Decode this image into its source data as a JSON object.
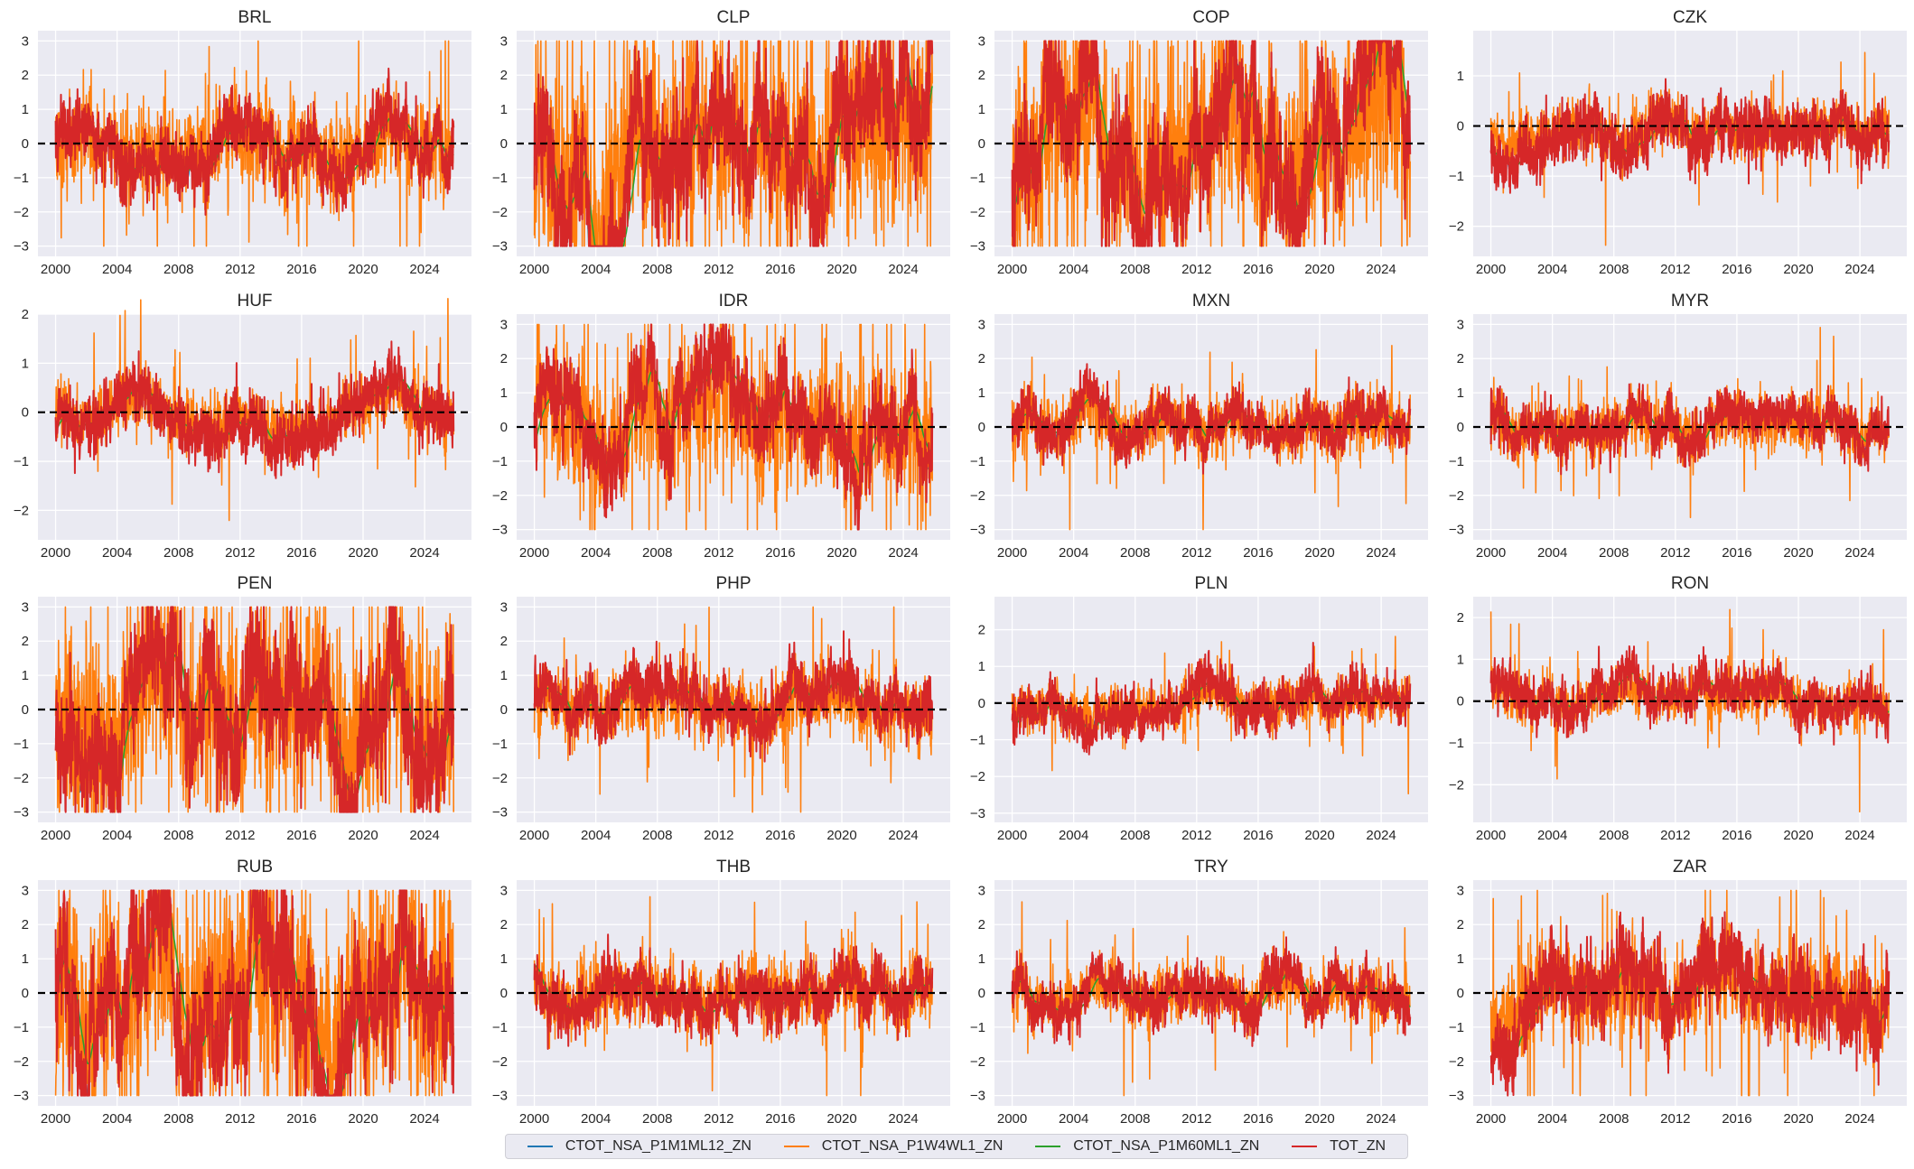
{
  "chart_data": {
    "type": "line",
    "xlim": [
      1998.85,
      2027.05
    ],
    "x_ticks": [
      2000,
      2004,
      2008,
      2012,
      2016,
      2020,
      2024
    ],
    "x_range_data": [
      2000.0,
      2025.9
    ],
    "grid": true,
    "legend_placement": "bottom-center",
    "reference_line": {
      "y": 0,
      "style": "dashed",
      "color": "#000000"
    },
    "series": [
      {
        "name": "CTOT_NSA_P1M1ML12_ZN",
        "color": "#1f77b4",
        "kind": "smooth"
      },
      {
        "name": "CTOT_NSA_P1W4WL1_ZN",
        "color": "#ff7f0e",
        "kind": "noisy"
      },
      {
        "name": "CTOT_NSA_P1M60ML1_ZN",
        "color": "#2ca02c",
        "kind": "smoothest"
      },
      {
        "name": "TOT_ZN",
        "color": "#d62728",
        "kind": "medium"
      }
    ],
    "clip": [
      -3,
      3
    ],
    "panels": [
      {
        "title": "BRL",
        "ylim": [
          -3.3,
          3.3
        ],
        "yticks": [
          -3,
          -2,
          -1,
          0,
          1,
          2,
          3
        ],
        "trend_amp": 1.1,
        "orange_vol": 1.2,
        "red_vol": 0.45
      },
      {
        "title": "CLP",
        "ylim": [
          -3.3,
          3.3
        ],
        "yticks": [
          -3,
          -2,
          -1,
          0,
          1,
          2,
          3
        ],
        "trend_amp": 2.3,
        "orange_vol": 2.8,
        "red_vol": 0.9
      },
      {
        "title": "COP",
        "ylim": [
          -3.3,
          3.3
        ],
        "yticks": [
          -3,
          -2,
          -1,
          0,
          1,
          2,
          3
        ],
        "trend_amp": 2.4,
        "orange_vol": 2.8,
        "red_vol": 0.9
      },
      {
        "title": "CZK",
        "ylim": [
          -2.6,
          1.9
        ],
        "yticks": [
          -2,
          -1,
          0,
          1
        ],
        "trend_amp": 0.45,
        "orange_vol": 0.45,
        "red_vol": 0.28
      },
      {
        "title": "HUF",
        "ylim": [
          -2.6,
          2.0
        ],
        "yticks": [
          -2,
          -1,
          0,
          1,
          2
        ],
        "trend_amp": 0.45,
        "orange_vol": 0.5,
        "red_vol": 0.3
      },
      {
        "title": "IDR",
        "ylim": [
          -3.3,
          3.3
        ],
        "yticks": [
          -3,
          -2,
          -1,
          0,
          1,
          2,
          3
        ],
        "trend_amp": 1.6,
        "orange_vol": 1.9,
        "red_vol": 0.6
      },
      {
        "title": "MXN",
        "ylim": [
          -3.3,
          3.3
        ],
        "yticks": [
          -3,
          -2,
          -1,
          0,
          1,
          2,
          3
        ],
        "trend_amp": 0.6,
        "orange_vol": 0.75,
        "red_vol": 0.35
      },
      {
        "title": "MYR",
        "ylim": [
          -3.3,
          3.3
        ],
        "yticks": [
          -3,
          -2,
          -1,
          0,
          1,
          2,
          3
        ],
        "trend_amp": 0.6,
        "orange_vol": 0.75,
        "red_vol": 0.35
      },
      {
        "title": "PEN",
        "ylim": [
          -3.3,
          3.3
        ],
        "yticks": [
          -3,
          -2,
          -1,
          0,
          1,
          2,
          3
        ],
        "trend_amp": 2.2,
        "orange_vol": 2.6,
        "red_vol": 0.9
      },
      {
        "title": "PHP",
        "ylim": [
          -3.3,
          3.3
        ],
        "yticks": [
          -3,
          -2,
          -1,
          0,
          1,
          2,
          3
        ],
        "trend_amp": 0.7,
        "orange_vol": 0.9,
        "red_vol": 0.4
      },
      {
        "title": "PLN",
        "ylim": [
          -3.25,
          2.9
        ],
        "yticks": [
          -3,
          -2,
          -1,
          0,
          1,
          2
        ],
        "trend_amp": 0.5,
        "orange_vol": 0.55,
        "red_vol": 0.3
      },
      {
        "title": "RON",
        "ylim": [
          -2.9,
          2.5
        ],
        "yticks": [
          -2,
          -1,
          0,
          1,
          2
        ],
        "trend_amp": 0.45,
        "orange_vol": 0.5,
        "red_vol": 0.28
      },
      {
        "title": "RUB",
        "ylim": [
          -3.3,
          3.3
        ],
        "yticks": [
          -3,
          -2,
          -1,
          0,
          1,
          2,
          3
        ],
        "trend_amp": 2.6,
        "orange_vol": 3.0,
        "red_vol": 1.0
      },
      {
        "title": "THB",
        "ylim": [
          -3.3,
          3.3
        ],
        "yticks": [
          -3,
          -2,
          -1,
          0,
          1,
          2,
          3
        ],
        "trend_amp": 0.7,
        "orange_vol": 0.9,
        "red_vol": 0.4
      },
      {
        "title": "TRY",
        "ylim": [
          -3.3,
          3.3
        ],
        "yticks": [
          -3,
          -2,
          -1,
          0,
          1,
          2,
          3
        ],
        "trend_amp": 0.6,
        "orange_vol": 0.7,
        "red_vol": 0.35
      },
      {
        "title": "ZAR",
        "ylim": [
          -3.3,
          3.3
        ],
        "yticks": [
          -3,
          -2,
          -1,
          0,
          1,
          2,
          3
        ],
        "trend_amp": 0.9,
        "orange_vol": 1.3,
        "red_vol": 0.6
      }
    ]
  },
  "legend": {
    "items": [
      {
        "label": "CTOT_NSA_P1M1ML12_ZN",
        "color": "#1f77b4"
      },
      {
        "label": "CTOT_NSA_P1W4WL1_ZN",
        "color": "#ff7f0e"
      },
      {
        "label": "CTOT_NSA_P1M60ML1_ZN",
        "color": "#2ca02c"
      },
      {
        "label": "TOT_ZN",
        "color": "#d62728"
      }
    ]
  }
}
